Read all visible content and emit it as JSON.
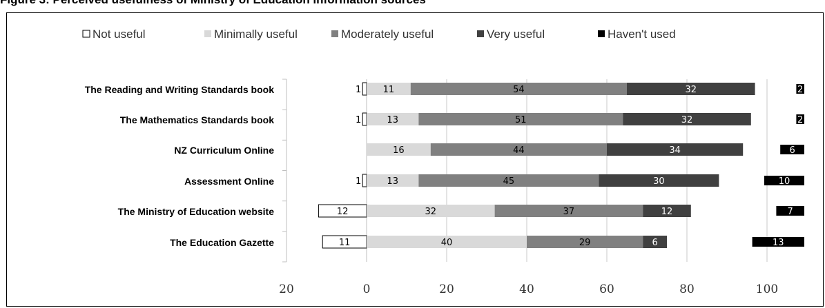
{
  "caption": "Figure 3: Perceived usefulness of Ministry of Education information sources",
  "chart_data": {
    "type": "bar",
    "orientation": "horizontal",
    "stacked": "diverging",
    "categories": [
      "The Reading and Writing Standards book",
      "The Mathematics Standards book",
      "NZ Curriculum Online",
      "Assessment Online",
      "The Ministry of Education website",
      "The Education Gazette"
    ],
    "series": [
      {
        "name": "Not useful",
        "color": "#ffffff",
        "outline": "#000000",
        "side": "negative",
        "values": [
          1,
          1,
          0,
          1,
          12,
          11
        ],
        "labels": [
          "1",
          "1",
          "",
          "1",
          "12",
          "11"
        ]
      },
      {
        "name": "Minimally useful",
        "color": "#d9d9d9",
        "values": [
          11,
          13,
          16,
          13,
          32,
          40
        ],
        "labels": [
          "11",
          "13",
          "16",
          "13",
          "32",
          "40"
        ]
      },
      {
        "name": "Moderately useful",
        "color": "#808080",
        "values": [
          54,
          51,
          44,
          45,
          37,
          29
        ],
        "labels": [
          "54",
          "51",
          "44",
          "45",
          "37",
          "29"
        ]
      },
      {
        "name": "Very useful",
        "color": "#404040",
        "values": [
          32,
          32,
          34,
          30,
          12,
          6
        ],
        "labels": [
          "32",
          "32",
          "34",
          "30",
          "12",
          "6"
        ]
      },
      {
        "name": "Haven't used",
        "color": "#000000",
        "side": "right-panel",
        "values": [
          2,
          2,
          6,
          10,
          7,
          13
        ],
        "labels": [
          "2",
          "2",
          "6",
          "10",
          "7",
          "13"
        ]
      }
    ],
    "x_ticks": [
      "20",
      "0",
      "20",
      "40",
      "60",
      "80",
      "100"
    ],
    "x_tick_values": [
      -20,
      0,
      20,
      40,
      60,
      80,
      100
    ],
    "xlim": [
      -20,
      110
    ],
    "grid": "vertical",
    "legend": "top"
  }
}
